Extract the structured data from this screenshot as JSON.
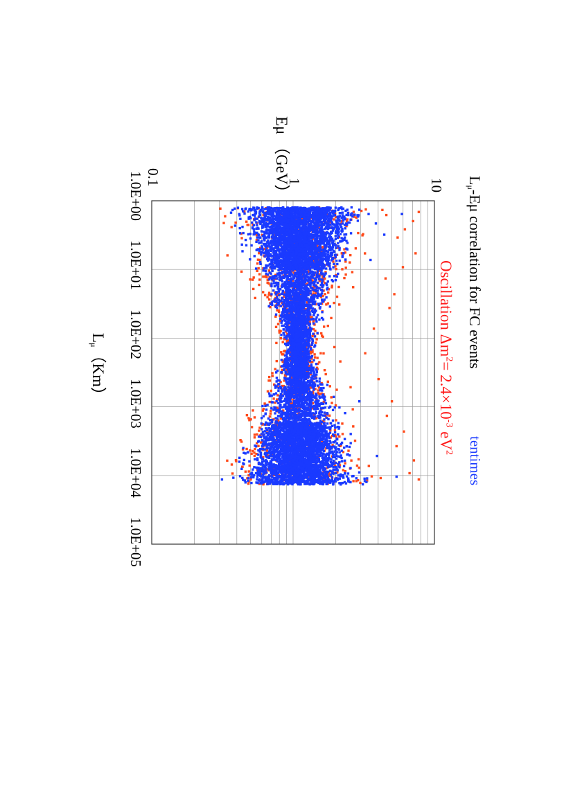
{
  "header": {
    "title_main": "L",
    "title_sub": "μ",
    "title_rest": "-Eμ correlation for FC events",
    "legend_label": "tentimes",
    "oscillation_text": "Oscillation Δm",
    "oscillation_sup1": "2",
    "oscillation_mid": "= 2.4×10",
    "oscillation_sup2": "-3",
    "oscillation_unit": " eV",
    "oscillation_sup3": "2"
  },
  "axes": {
    "ylabel": "Eμ （GeV）",
    "xlabel_main": "L",
    "xlabel_sub": "μ",
    "xlabel_rest": "（Km）",
    "yticks": [
      "10",
      "1",
      "0.1"
    ],
    "xticks": [
      "1.0E+00",
      "1.0E+01",
      "1.0E+02",
      "1.0E+03",
      "1.0E+04",
      "1.0E+05"
    ]
  },
  "colors": {
    "no_oscillation": "#1a3aff",
    "oscillation": "#ff4a1a",
    "grid": "#999999",
    "frame": "#333333"
  },
  "chart_data": {
    "type": "scatter",
    "title": "Lμ-Eμ correlation for FC events",
    "xlabel": "Lμ （Km）",
    "ylabel": "Eμ （GeV）",
    "xscale": "log",
    "yscale": "log",
    "xlim": [
      1,
      100000
    ],
    "ylim": [
      0.1,
      10
    ],
    "grid": true,
    "annotations": [
      "tentimes",
      "Oscillation Δm2= 2.4×10-3 eV2"
    ],
    "series": [
      {
        "color": "#ff4a1a",
        "x_range": [
          1.2,
          13000
        ],
        "y_range": [
          0.3,
          8
        ],
        "points": [
          [
            1.4,
            7.9
          ],
          [
            1.9,
            7.2
          ],
          [
            2.5,
            6.3
          ],
          [
            3.3,
            5.6
          ],
          [
            5.6,
            7.5
          ],
          [
            8.9,
            6.1
          ],
          [
            13,
            4.6
          ],
          [
            22,
            5.3
          ],
          [
            35,
            4.9
          ],
          [
            70,
            3.8
          ],
          [
            160,
            3.3
          ],
          [
            210,
            2.2
          ],
          [
            380,
            4.1
          ],
          [
            800,
            5.1
          ],
          [
            1300,
            4.7
          ],
          [
            2200,
            6.2
          ],
          [
            3600,
            5.5
          ],
          [
            5800,
            7.3
          ],
          [
            8900,
            6.8
          ],
          [
            11000,
            7.9
          ],
          [
            2.0,
            0.4
          ],
          [
            6.0,
            0.35
          ],
          [
            25,
            0.55
          ],
          [
            90,
            1.4
          ],
          [
            160,
            1.6
          ],
          [
            130,
            2.0
          ],
          [
            260,
            1.2
          ],
          [
            60,
            0.8
          ],
          [
            400,
            0.7
          ],
          [
            1500,
            0.5
          ],
          [
            4000,
            0.45
          ],
          [
            9000,
            0.38
          ],
          [
            30,
            1.8
          ],
          [
            500,
            2.6
          ],
          [
            700,
            1.9
          ],
          [
            3000,
            2.8
          ],
          [
            7000,
            3.5
          ]
        ]
      },
      {
        "color": "#1a3aff",
        "x_range": [
          1.2,
          13000
        ],
        "y_range": [
          0.3,
          6
        ],
        "points": [
          [
            1.3,
            1.0
          ],
          [
            1.3,
            0.5
          ],
          [
            1.3,
            3.0
          ],
          [
            2.0,
            1.5
          ],
          [
            3.0,
            0.8
          ],
          [
            5.0,
            1.2
          ],
          [
            8.0,
            0.6
          ],
          [
            12,
            2.0
          ],
          [
            20,
            1.0
          ],
          [
            40,
            1.3
          ],
          [
            60,
            0.9
          ],
          [
            100,
            1.3
          ],
          [
            150,
            1.1
          ],
          [
            300,
            1.5
          ],
          [
            600,
            1.0
          ],
          [
            1000,
            1.2
          ],
          [
            1500,
            0.7
          ],
          [
            2500,
            1.8
          ],
          [
            4000,
            1.0
          ],
          [
            6000,
            0.5
          ],
          [
            9000,
            2.5
          ],
          [
            12000,
            1.0
          ],
          [
            3.0,
            4.5
          ],
          [
            7.0,
            3.6
          ],
          [
            800,
            3.0
          ],
          [
            5000,
            4.0
          ],
          [
            10000,
            5.5
          ],
          [
            1.5,
            6.0
          ],
          [
            11000,
            0.32
          ]
        ]
      }
    ]
  }
}
